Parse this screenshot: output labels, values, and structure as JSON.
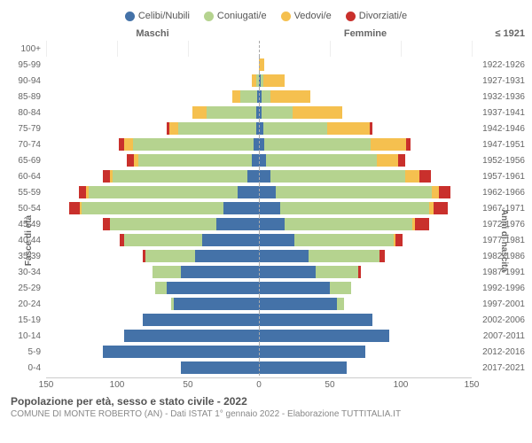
{
  "chart": {
    "type": "population-pyramid",
    "legend": [
      {
        "label": "Celibi/Nubili",
        "color": "#4472a8"
      },
      {
        "label": "Coniugati/e",
        "color": "#b5d38f"
      },
      {
        "label": "Vedovi/e",
        "color": "#f5c04f"
      },
      {
        "label": "Divorziati/e",
        "color": "#c9302c"
      }
    ],
    "header_male": "Maschi",
    "header_female": "Femmine",
    "header_birth_top": "≤ 1921",
    "y_axis_left": "Fasce di età",
    "y_axis_right": "Anni di nascita",
    "x_max": 150,
    "x_ticks": [
      150,
      100,
      50,
      0,
      50,
      100,
      150
    ],
    "colors": {
      "single": "#4472a8",
      "married": "#b5d38f",
      "widowed": "#f5c04f",
      "divorced": "#c9302c",
      "grid": "#eeeeee",
      "axis": "#cccccc"
    },
    "rows": [
      {
        "age": "100+",
        "birth": "≤ 1921",
        "m": {
          "s": 0,
          "c": 0,
          "w": 0,
          "d": 0
        },
        "f": {
          "s": 0,
          "c": 0,
          "w": 0,
          "d": 0
        }
      },
      {
        "age": "95-99",
        "birth": "1922-1926",
        "m": {
          "s": 0,
          "c": 0,
          "w": 0,
          "d": 0
        },
        "f": {
          "s": 0,
          "c": 0,
          "w": 4,
          "d": 0
        }
      },
      {
        "age": "90-94",
        "birth": "1927-1931",
        "m": {
          "s": 0,
          "c": 2,
          "w": 3,
          "d": 0
        },
        "f": {
          "s": 1,
          "c": 2,
          "w": 15,
          "d": 0
        }
      },
      {
        "age": "85-89",
        "birth": "1932-1936",
        "m": {
          "s": 1,
          "c": 12,
          "w": 6,
          "d": 0
        },
        "f": {
          "s": 2,
          "c": 6,
          "w": 28,
          "d": 0
        }
      },
      {
        "age": "80-84",
        "birth": "1937-1941",
        "m": {
          "s": 2,
          "c": 35,
          "w": 10,
          "d": 0
        },
        "f": {
          "s": 2,
          "c": 22,
          "w": 35,
          "d": 0
        }
      },
      {
        "age": "75-79",
        "birth": "1942-1946",
        "m": {
          "s": 2,
          "c": 55,
          "w": 6,
          "d": 2
        },
        "f": {
          "s": 3,
          "c": 45,
          "w": 30,
          "d": 2
        }
      },
      {
        "age": "70-74",
        "birth": "1947-1951",
        "m": {
          "s": 4,
          "c": 85,
          "w": 6,
          "d": 4
        },
        "f": {
          "s": 4,
          "c": 75,
          "w": 25,
          "d": 3
        }
      },
      {
        "age": "65-69",
        "birth": "1952-1956",
        "m": {
          "s": 5,
          "c": 80,
          "w": 3,
          "d": 5
        },
        "f": {
          "s": 5,
          "c": 78,
          "w": 15,
          "d": 5
        }
      },
      {
        "age": "60-64",
        "birth": "1957-1961",
        "m": {
          "s": 8,
          "c": 95,
          "w": 2,
          "d": 5
        },
        "f": {
          "s": 8,
          "c": 95,
          "w": 10,
          "d": 8
        }
      },
      {
        "age": "55-59",
        "birth": "1962-1966",
        "m": {
          "s": 15,
          "c": 105,
          "w": 2,
          "d": 5
        },
        "f": {
          "s": 12,
          "c": 110,
          "w": 5,
          "d": 8
        }
      },
      {
        "age": "50-54",
        "birth": "1967-1971",
        "m": {
          "s": 25,
          "c": 100,
          "w": 1,
          "d": 8
        },
        "f": {
          "s": 15,
          "c": 105,
          "w": 3,
          "d": 10
        }
      },
      {
        "age": "45-49",
        "birth": "1972-1976",
        "m": {
          "s": 30,
          "c": 75,
          "w": 0,
          "d": 5
        },
        "f": {
          "s": 18,
          "c": 90,
          "w": 2,
          "d": 10
        }
      },
      {
        "age": "40-44",
        "birth": "1977-1981",
        "m": {
          "s": 40,
          "c": 55,
          "w": 0,
          "d": 3
        },
        "f": {
          "s": 25,
          "c": 70,
          "w": 1,
          "d": 5
        }
      },
      {
        "age": "35-39",
        "birth": "1982-1986",
        "m": {
          "s": 45,
          "c": 35,
          "w": 0,
          "d": 2
        },
        "f": {
          "s": 35,
          "c": 50,
          "w": 0,
          "d": 4
        }
      },
      {
        "age": "30-34",
        "birth": "1987-1991",
        "m": {
          "s": 55,
          "c": 20,
          "w": 0,
          "d": 0
        },
        "f": {
          "s": 40,
          "c": 30,
          "w": 0,
          "d": 2
        }
      },
      {
        "age": "25-29",
        "birth": "1992-1996",
        "m": {
          "s": 65,
          "c": 8,
          "w": 0,
          "d": 0
        },
        "f": {
          "s": 50,
          "c": 15,
          "w": 0,
          "d": 0
        }
      },
      {
        "age": "20-24",
        "birth": "1997-2001",
        "m": {
          "s": 60,
          "c": 2,
          "w": 0,
          "d": 0
        },
        "f": {
          "s": 55,
          "c": 5,
          "w": 0,
          "d": 0
        }
      },
      {
        "age": "15-19",
        "birth": "2002-2006",
        "m": {
          "s": 82,
          "c": 0,
          "w": 0,
          "d": 0
        },
        "f": {
          "s": 80,
          "c": 0,
          "w": 0,
          "d": 0
        }
      },
      {
        "age": "10-14",
        "birth": "2007-2011",
        "m": {
          "s": 95,
          "c": 0,
          "w": 0,
          "d": 0
        },
        "f": {
          "s": 92,
          "c": 0,
          "w": 0,
          "d": 0
        }
      },
      {
        "age": "5-9",
        "birth": "2012-2016",
        "m": {
          "s": 110,
          "c": 0,
          "w": 0,
          "d": 0
        },
        "f": {
          "s": 75,
          "c": 0,
          "w": 0,
          "d": 0
        }
      },
      {
        "age": "0-4",
        "birth": "2017-2021",
        "m": {
          "s": 55,
          "c": 0,
          "w": 0,
          "d": 0
        },
        "f": {
          "s": 62,
          "c": 0,
          "w": 0,
          "d": 0
        }
      }
    ],
    "footer_title": "Popolazione per età, sesso e stato civile - 2022",
    "footer_sub": "COMUNE DI MONTE ROBERTO (AN) - Dati ISTAT 1° gennaio 2022 - Elaborazione TUTTITALIA.IT"
  }
}
